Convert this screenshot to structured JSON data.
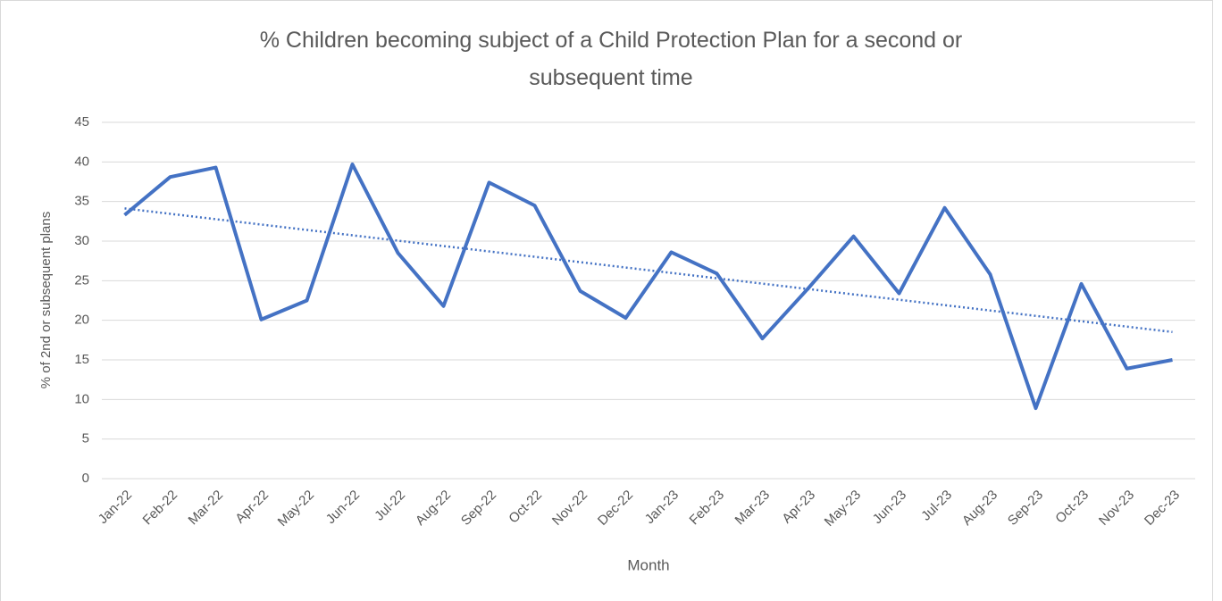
{
  "chart_data": {
    "type": "line",
    "title": "% Children becoming subject of a Child Protection Plan for a second or subsequent time",
    "x_label": "Month",
    "y_label": "% of 2nd or subsequent plans",
    "categories": [
      "Jan-22",
      "Feb-22",
      "Mar-22",
      "Apr-22",
      "May-22",
      "Jun-22",
      "Jul-22",
      "Aug-22",
      "Sep-22",
      "Oct-22",
      "Nov-22",
      "Dec-22",
      "Jan-23",
      "Feb-23",
      "Mar-23",
      "Apr-23",
      "May-23",
      "Jun-23",
      "Jul-23",
      "Aug-23",
      "Sep-23",
      "Oct-23",
      "Nov-23",
      "Dec-23"
    ],
    "values": [
      33.3,
      38.1,
      39.3,
      20.1,
      22.5,
      39.7,
      28.5,
      21.8,
      37.4,
      34.5,
      23.7,
      20.3,
      28.6,
      25.9,
      17.7,
      24.0,
      30.6,
      23.4,
      34.2,
      25.8,
      8.9,
      24.6,
      13.9,
      15.0
    ],
    "color": "#4472c4",
    "trendline": "linear",
    "ylim": [
      0,
      45
    ],
    "yticks": [
      0,
      5,
      10,
      15,
      20,
      25,
      30,
      35,
      40,
      45
    ],
    "grid": true
  }
}
